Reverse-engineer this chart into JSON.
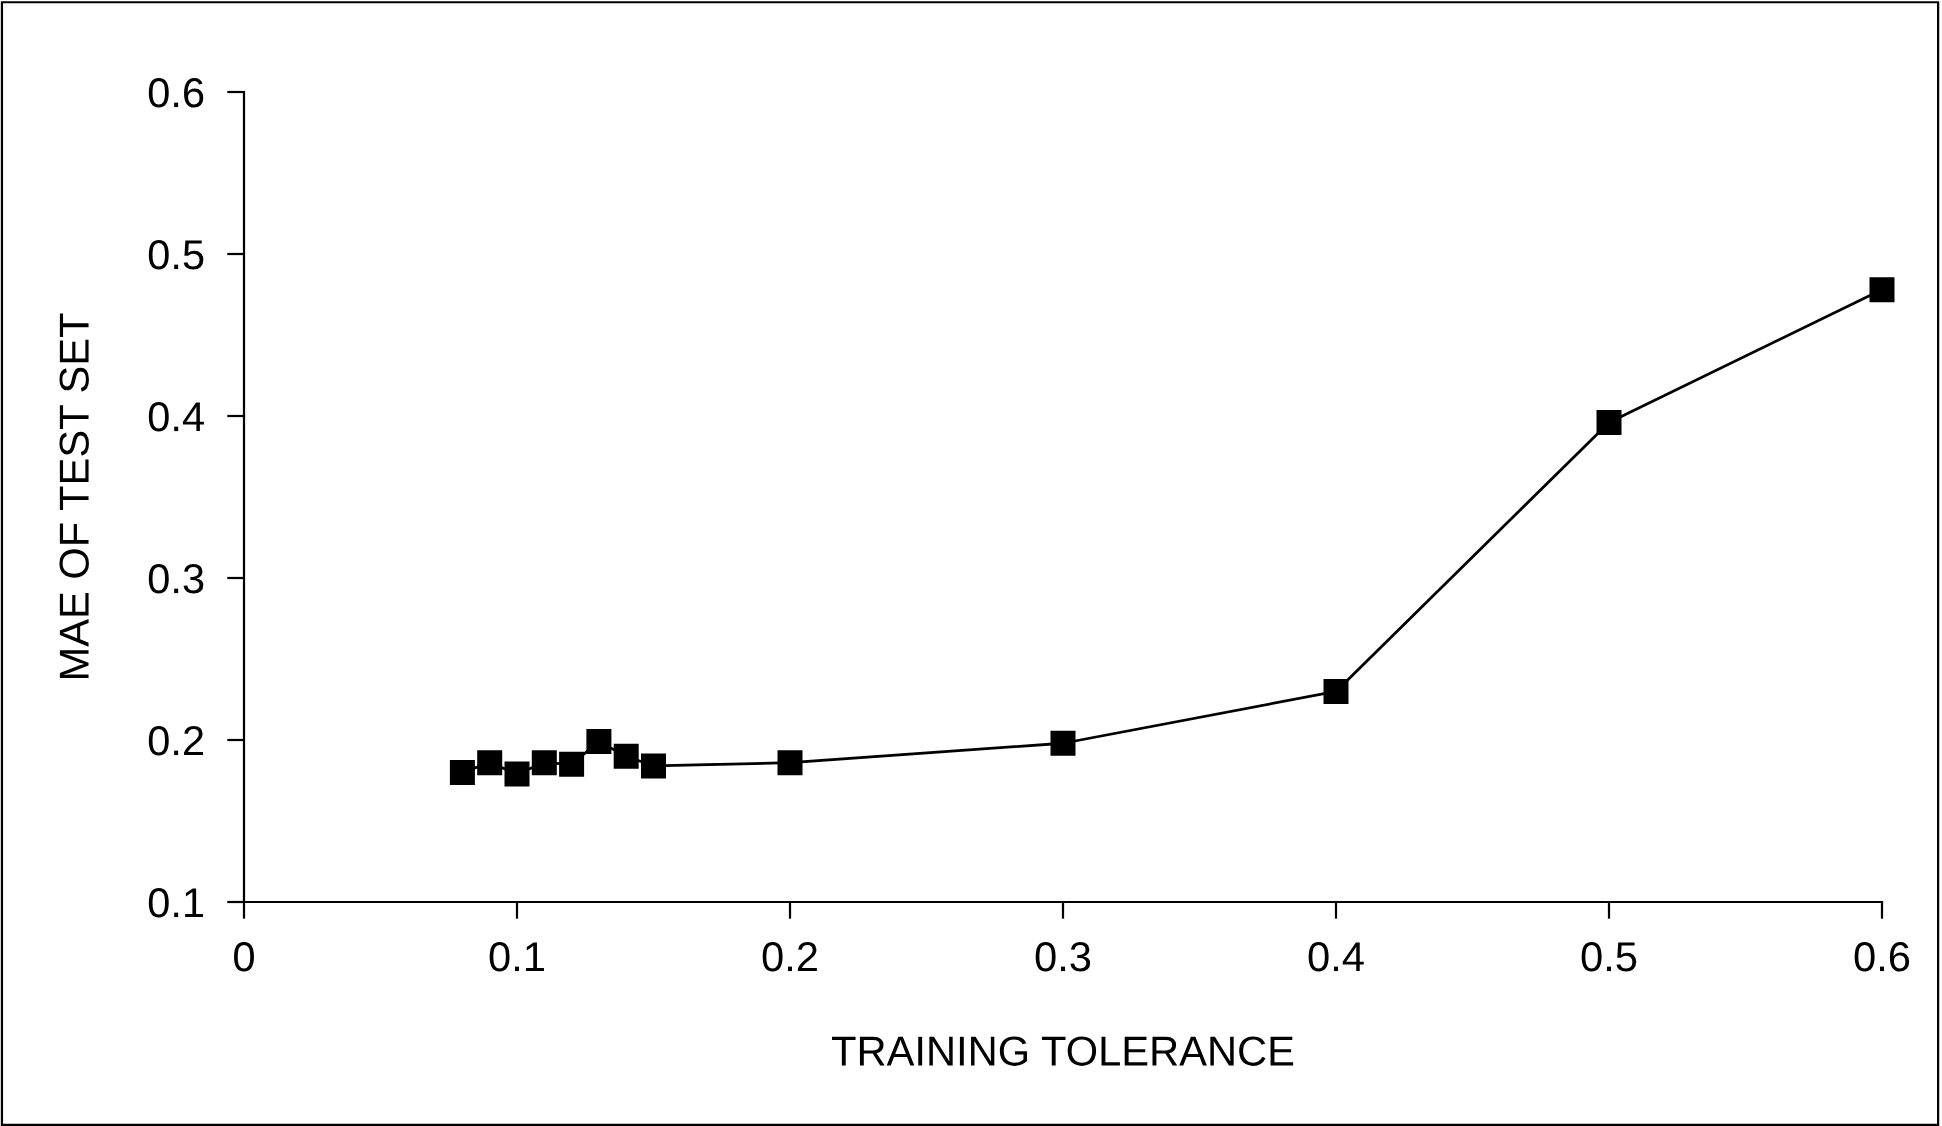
{
  "chart_data": {
    "type": "line",
    "xlabel": "TRAINING TOLERANCE",
    "ylabel": "MAE OF TEST SET",
    "x": [
      0.08,
      0.09,
      0.1,
      0.11,
      0.12,
      0.13,
      0.14,
      0.15,
      0.2,
      0.3,
      0.4,
      0.5,
      0.6
    ],
    "series": [
      {
        "color": "#000000",
        "values": [
          0.18,
          0.186,
          0.179,
          0.186,
          0.185,
          0.199,
          0.19,
          0.184,
          0.186,
          0.198,
          0.23,
          0.396,
          0.478
        ]
      }
    ],
    "xlim": [
      0,
      0.6
    ],
    "ylim": [
      0.1,
      0.6
    ],
    "xticks": [
      0,
      0.1,
      0.2,
      0.3,
      0.4,
      0.5,
      0.6
    ],
    "yticks": [
      0.1,
      0.2,
      0.3,
      0.4,
      0.5,
      0.6
    ],
    "marker": "square",
    "line_style": "solid",
    "grid": false,
    "legend": false
  }
}
